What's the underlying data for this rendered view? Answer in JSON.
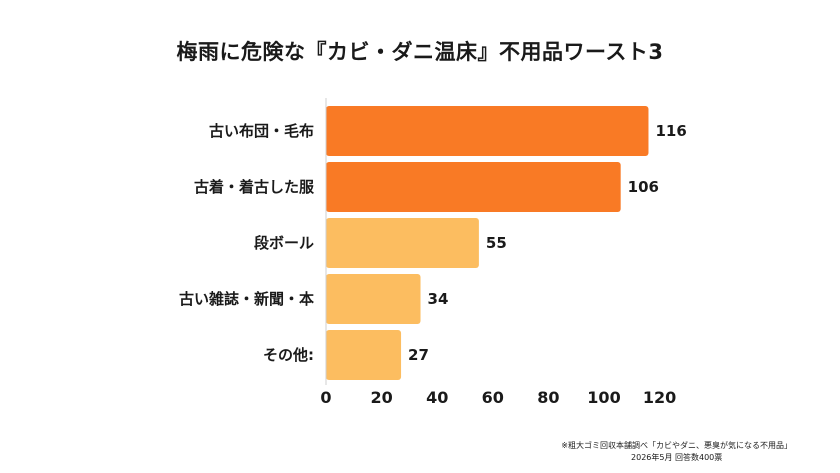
{
  "chart_data": {
    "type": "bar",
    "orientation": "horizontal",
    "title": "梅雨に危険な『カビ・ダニ温床』不用品ワースト3",
    "categories": [
      "古い布団・毛布",
      "古着・着古した服",
      "段ボール",
      "古い雑誌・新聞・本",
      "その他:"
    ],
    "values": [
      116,
      106,
      55,
      34,
      27
    ],
    "value_labels": [
      "116",
      "106",
      "55",
      "34",
      "27"
    ],
    "xlim": [
      0,
      120
    ],
    "xticks": [
      0,
      20,
      40,
      60,
      80,
      100,
      120
    ],
    "xtick_labels": [
      "0",
      "20",
      "40",
      "60",
      "80",
      "100",
      "120"
    ],
    "grid": false,
    "colors": [
      "#f97a25",
      "#f97a25",
      "#fcbd60",
      "#fcbd60",
      "#fcbd60"
    ]
  },
  "footnote": {
    "line1": "※粗大ゴミ回収本舗調べ「カビやダニ、悪臭が気になる不用品」",
    "line2": "2026年5月 回答数400票"
  }
}
